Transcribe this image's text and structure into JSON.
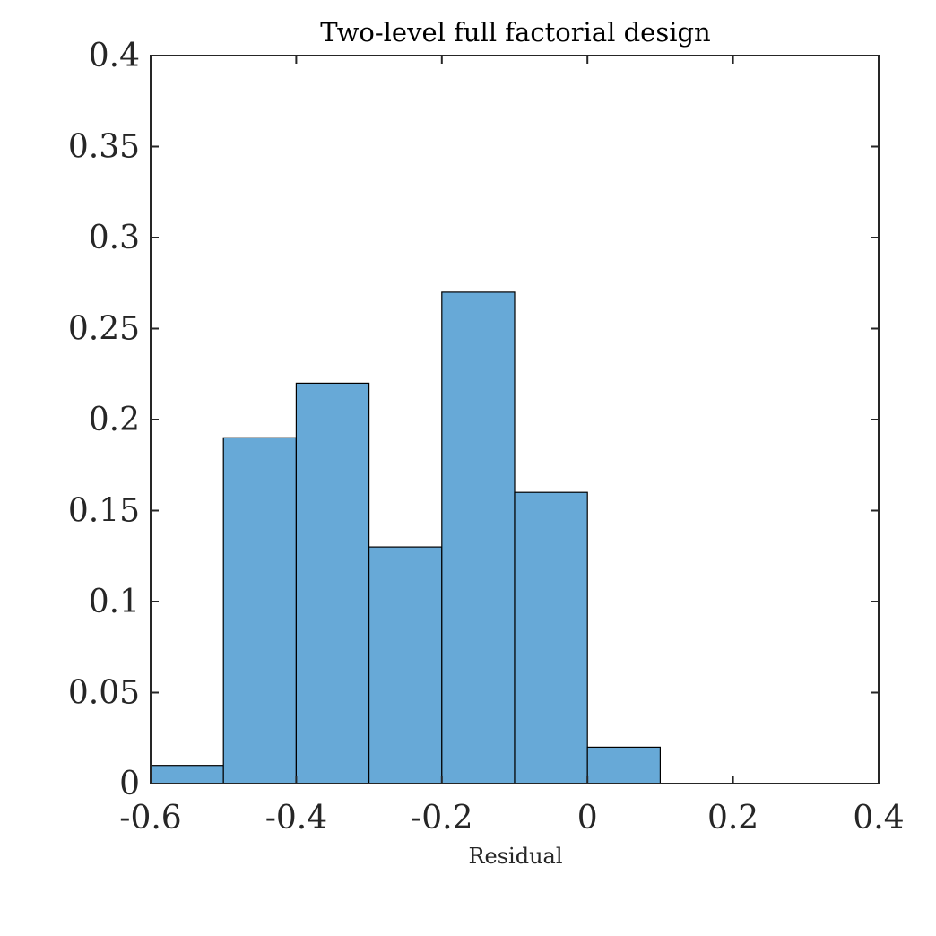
{
  "chart_data": {
    "type": "bar",
    "title": "Two-level full factorial design",
    "xlabel": "Residual",
    "ylabel": "",
    "bin_edges": [
      -0.6,
      -0.5,
      -0.4,
      -0.3,
      -0.2,
      -0.1,
      0.0,
      0.1
    ],
    "values": [
      0.01,
      0.19,
      0.22,
      0.13,
      0.27,
      0.16,
      0.02
    ],
    "xlim": [
      -0.6,
      0.4
    ],
    "ylim": [
      0,
      0.4
    ],
    "xticks": [
      -0.6,
      -0.4,
      -0.2,
      0,
      0.2,
      0.4
    ],
    "xtick_labels": [
      "-0.6",
      "-0.4",
      "-0.2",
      "0",
      "0.2",
      "0.4"
    ],
    "yticks": [
      0,
      0.05,
      0.1,
      0.15,
      0.2,
      0.25,
      0.3,
      0.35,
      0.4
    ],
    "ytick_labels": [
      "0",
      "0.05",
      "0.1",
      "0.15",
      "0.2",
      "0.25",
      "0.3",
      "0.35",
      "0.4"
    ],
    "bar_color": "#67a9d7",
    "edge_color": "#000000",
    "axis_color": "#262626",
    "grid": false,
    "legend": "none"
  }
}
